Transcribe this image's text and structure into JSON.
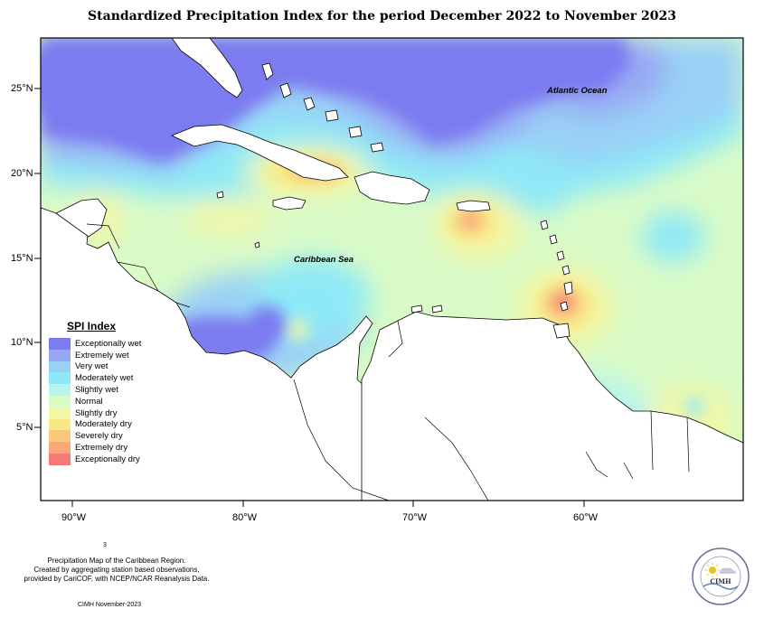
{
  "title": "Standardized Precipitation Index for the period December 2022 to November 2023",
  "axes": {
    "lat_labels": [
      "25°N",
      "20°N",
      "15°N",
      "10°N",
      "5°N"
    ],
    "lon_labels": [
      "90°W",
      "80°W",
      "70°W",
      "60°W"
    ]
  },
  "labels": {
    "atlantic": "Atlantic Ocean",
    "caribbean": "Caribbean Sea"
  },
  "legend": {
    "title": "SPI Index",
    "items": [
      {
        "label": "Exceptionally wet",
        "color": "#7b7cf0"
      },
      {
        "label": "Extremely wet",
        "color": "#97a8f3"
      },
      {
        "label": "Very wet",
        "color": "#99d0f6"
      },
      {
        "label": "Moderately wet",
        "color": "#8ee9f7"
      },
      {
        "label": "Slightly wet",
        "color": "#b6f4ec"
      },
      {
        "label": "Normal",
        "color": "#d9fbc7"
      },
      {
        "label": "Slightly dry",
        "color": "#f3f7a6"
      },
      {
        "label": "Moderately dry",
        "color": "#f9e884"
      },
      {
        "label": "Severely dry",
        "color": "#fbc97d"
      },
      {
        "label": "Extremely dry",
        "color": "#f8a77a"
      },
      {
        "label": "Exceptionally dry",
        "color": "#f47a78"
      }
    ]
  },
  "footnote": {
    "mark": "3",
    "lines": [
      "Precipitation Map of the Caribbean Region.",
      "Created by aggregating station based observations,",
      "provided by CariCOF, with NCEP/NCAR Reanalysis Data."
    ],
    "credit": "CIMH November-2023"
  },
  "logo": {
    "text": "CIMH"
  }
}
